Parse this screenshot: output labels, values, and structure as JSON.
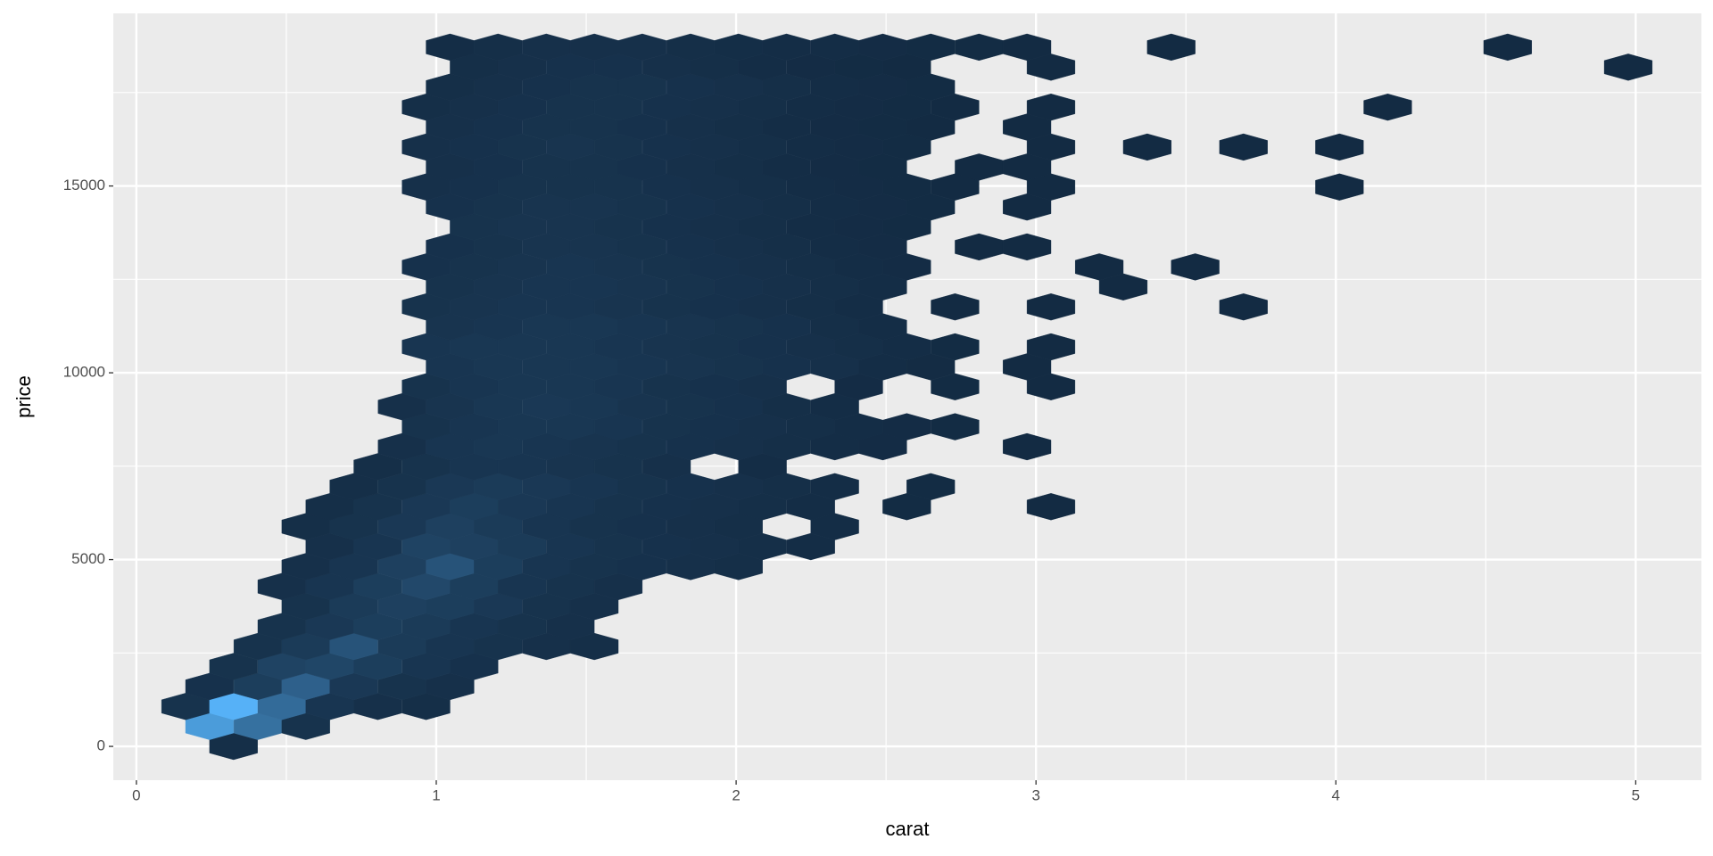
{
  "chart_data": {
    "type": "hexbin",
    "xlabel": "carat",
    "ylabel": "price",
    "xlim": [
      -0.077,
      5.219
    ],
    "ylim": [
      -905,
      19620
    ],
    "xticks": [
      0,
      1,
      2,
      3,
      4,
      5
    ],
    "yticks": [
      0,
      5000,
      10000,
      15000
    ],
    "minor_xticks": [
      0.5,
      1.5,
      2.5,
      3.5,
      4.5
    ],
    "minor_yticks": [
      2500,
      7500,
      12500,
      17500
    ],
    "grid": true,
    "colors": [
      "#132B43",
      "#56B1F7"
    ],
    "rows": [
      {
        "y": 0,
        "x": [
          0.324
        ],
        "values": [
          150
        ]
      },
      {
        "y": 535,
        "x": [
          0.244,
          0.405,
          0.565
        ],
        "values": [
          4200,
          2600,
          300
        ]
      },
      {
        "y": 1069,
        "x": [
          0.164,
          0.324,
          0.485,
          0.645,
          0.805,
          0.966
        ],
        "values": [
          300,
          5000,
          2400,
          400,
          200,
          150
        ]
      },
      {
        "y": 1604,
        "x": [
          0.244,
          0.405,
          0.565,
          0.725,
          0.886,
          1.046
        ],
        "values": [
          250,
          700,
          2000,
          500,
          300,
          200
        ]
      },
      {
        "y": 2139,
        "x": [
          0.324,
          0.485,
          0.645,
          0.805,
          0.966,
          1.126
        ],
        "values": [
          300,
          900,
          1000,
          700,
          400,
          250
        ]
      },
      {
        "y": 2674,
        "x": [
          0.405,
          0.565,
          0.725,
          0.886,
          1.046,
          1.206,
          1.367,
          1.527
        ],
        "values": [
          300,
          600,
          1500,
          600,
          400,
          300,
          200,
          150
        ]
      },
      {
        "y": 3208,
        "x": [
          0.485,
          0.645,
          0.805,
          0.966,
          1.126,
          1.286,
          1.447
        ],
        "values": [
          300,
          500,
          700,
          600,
          400,
          300,
          200
        ]
      },
      {
        "y": 3743,
        "x": [
          0.565,
          0.725,
          0.886,
          1.046,
          1.206,
          1.367,
          1.527
        ],
        "values": [
          300,
          600,
          800,
          700,
          500,
          300,
          200
        ]
      },
      {
        "y": 4278,
        "x": [
          0.485,
          0.645,
          0.805,
          0.966,
          1.126,
          1.286,
          1.447,
          1.607
        ],
        "values": [
          200,
          400,
          700,
          1100,
          700,
          400,
          300,
          200
        ]
      },
      {
        "y": 4812,
        "x": [
          0.565,
          0.725,
          0.886,
          1.046,
          1.206,
          1.367,
          1.527,
          1.687,
          1.848,
          2.008
        ],
        "values": [
          200,
          400,
          800,
          1500,
          700,
          400,
          300,
          250,
          200,
          150
        ]
      },
      {
        "y": 5347,
        "x": [
          0.645,
          0.805,
          0.966,
          1.126,
          1.286,
          1.447,
          1.607,
          1.768,
          1.928,
          2.088,
          2.249
        ],
        "values": [
          200,
          400,
          900,
          800,
          600,
          400,
          300,
          250,
          200,
          150,
          100
        ]
      },
      {
        "y": 5882,
        "x": [
          0.565,
          0.725,
          0.886,
          1.046,
          1.206,
          1.367,
          1.527,
          1.687,
          1.848,
          2.008,
          2.329
        ],
        "values": [
          150,
          300,
          500,
          800,
          600,
          400,
          300,
          250,
          200,
          150,
          100
        ]
      },
      {
        "y": 6416,
        "x": [
          0.645,
          0.805,
          0.966,
          1.126,
          1.286,
          1.447,
          1.607,
          1.768,
          1.928,
          2.088,
          2.249,
          2.569,
          3.05
        ],
        "values": [
          150,
          300,
          500,
          700,
          500,
          400,
          300,
          250,
          200,
          150,
          100,
          30,
          20
        ]
      },
      {
        "y": 6951,
        "x": [
          0.725,
          0.886,
          1.046,
          1.206,
          1.367,
          1.527,
          1.687,
          1.848,
          2.008,
          2.168,
          2.329,
          2.649
        ],
        "values": [
          150,
          300,
          500,
          600,
          500,
          400,
          300,
          250,
          200,
          150,
          100,
          30
        ]
      },
      {
        "y": 7486,
        "x": [
          0.805,
          0.966,
          1.126,
          1.286,
          1.447,
          1.607,
          1.768,
          2.088
        ],
        "values": [
          150,
          300,
          400,
          400,
          350,
          300,
          200,
          100
        ]
      },
      {
        "y": 8021,
        "x": [
          0.886,
          1.046,
          1.206,
          1.367,
          1.527,
          1.687,
          1.848,
          2.008,
          2.168,
          2.329,
          2.489,
          2.97
        ],
        "values": [
          200,
          400,
          450,
          400,
          350,
          300,
          250,
          200,
          150,
          100,
          60,
          20
        ]
      },
      {
        "y": 8555,
        "x": [
          0.966,
          1.126,
          1.286,
          1.447,
          1.607,
          1.768,
          1.928,
          2.088,
          2.249,
          2.409,
          2.569,
          2.73
        ],
        "values": [
          300,
          400,
          450,
          450,
          400,
          300,
          250,
          200,
          150,
          100,
          60,
          30
        ]
      },
      {
        "y": 9090,
        "x": [
          0.886,
          1.046,
          1.206,
          1.367,
          1.527,
          1.687,
          1.848,
          2.008,
          2.168,
          2.329
        ],
        "values": [
          200,
          350,
          450,
          500,
          450,
          350,
          300,
          250,
          150,
          100
        ]
      },
      {
        "y": 9625,
        "x": [
          0.966,
          1.126,
          1.286,
          1.447,
          1.607,
          1.768,
          1.928,
          2.088,
          2.409,
          2.73,
          3.05
        ],
        "values": [
          300,
          400,
          450,
          450,
          400,
          300,
          250,
          200,
          60,
          30,
          20
        ]
      },
      {
        "y": 10159,
        "x": [
          1.046,
          1.206,
          1.367,
          1.527,
          1.687,
          1.848,
          2.008,
          2.168,
          2.329,
          2.489,
          2.649,
          2.97
        ],
        "values": [
          400,
          450,
          450,
          450,
          400,
          350,
          300,
          250,
          200,
          100,
          50,
          20
        ]
      },
      {
        "y": 10694,
        "x": [
          0.966,
          1.126,
          1.286,
          1.447,
          1.607,
          1.768,
          1.928,
          2.088,
          2.249,
          2.409,
          2.569,
          2.73,
          3.05
        ],
        "values": [
          400,
          450,
          450,
          450,
          400,
          350,
          300,
          250,
          200,
          150,
          80,
          40,
          20
        ]
      },
      {
        "y": 11229,
        "x": [
          1.046,
          1.206,
          1.367,
          1.527,
          1.687,
          1.848,
          2.008,
          2.168,
          2.329,
          2.489
        ],
        "values": [
          350,
          400,
          450,
          450,
          400,
          350,
          300,
          250,
          150,
          100
        ]
      },
      {
        "y": 11763,
        "x": [
          0.966,
          1.126,
          1.286,
          1.447,
          1.607,
          1.768,
          1.928,
          2.088,
          2.249,
          2.409,
          2.73,
          3.05,
          3.692
        ],
        "values": [
          300,
          350,
          400,
          400,
          350,
          300,
          250,
          200,
          150,
          80,
          20,
          20,
          10
        ]
      },
      {
        "y": 12298,
        "x": [
          1.046,
          1.206,
          1.367,
          1.527,
          1.687,
          1.848,
          2.008,
          2.168,
          2.329,
          2.489,
          3.291
        ],
        "values": [
          300,
          350,
          400,
          400,
          350,
          300,
          250,
          200,
          150,
          80,
          10
        ]
      },
      {
        "y": 12833,
        "x": [
          0.966,
          1.126,
          1.286,
          1.447,
          1.607,
          1.768,
          1.928,
          2.088,
          2.249,
          2.409,
          2.569,
          3.211,
          3.531
        ],
        "values": [
          250,
          300,
          350,
          400,
          350,
          300,
          250,
          200,
          150,
          100,
          60,
          10,
          10
        ]
      },
      {
        "y": 13368,
        "x": [
          1.046,
          1.206,
          1.367,
          1.527,
          1.687,
          1.848,
          2.008,
          2.168,
          2.329,
          2.489,
          2.81,
          2.97
        ],
        "values": [
          250,
          300,
          350,
          350,
          300,
          250,
          200,
          150,
          100,
          60,
          20,
          20
        ]
      },
      {
        "y": 13902,
        "x": [
          1.126,
          1.286,
          1.447,
          1.607,
          1.768,
          1.928,
          2.088,
          2.249,
          2.409,
          2.569
        ],
        "values": [
          300,
          350,
          350,
          300,
          250,
          200,
          150,
          100,
          60,
          30
        ]
      },
      {
        "y": 14437,
        "x": [
          1.046,
          1.206,
          1.367,
          1.527,
          1.687,
          1.848,
          2.008,
          2.168,
          2.329,
          2.489,
          2.649,
          2.97
        ],
        "values": [
          250,
          300,
          350,
          350,
          300,
          250,
          200,
          150,
          100,
          60,
          30,
          20
        ]
      },
      {
        "y": 14972,
        "x": [
          0.966,
          1.126,
          1.286,
          1.447,
          1.607,
          1.768,
          1.928,
          2.088,
          2.249,
          2.409,
          2.569,
          2.73,
          3.05,
          4.012
        ],
        "values": [
          200,
          250,
          300,
          300,
          300,
          250,
          200,
          150,
          100,
          60,
          40,
          20,
          20,
          10
        ]
      },
      {
        "y": 15506,
        "x": [
          1.046,
          1.206,
          1.367,
          1.527,
          1.687,
          1.848,
          2.008,
          2.168,
          2.329,
          2.489,
          2.81,
          2.97
        ],
        "values": [
          200,
          250,
          300,
          300,
          250,
          200,
          150,
          100,
          60,
          40,
          20,
          20
        ]
      },
      {
        "y": 16041,
        "x": [
          0.966,
          1.126,
          1.286,
          1.447,
          1.607,
          1.768,
          1.928,
          2.088,
          2.249,
          2.409,
          2.569,
          3.05,
          3.371,
          3.692,
          4.012
        ],
        "values": [
          200,
          250,
          300,
          350,
          300,
          250,
          200,
          150,
          100,
          60,
          30,
          20,
          10,
          10,
          10
        ]
      },
      {
        "y": 16576,
        "x": [
          1.046,
          1.206,
          1.367,
          1.527,
          1.687,
          1.848,
          2.008,
          2.168,
          2.329,
          2.489,
          2.649,
          2.97
        ],
        "values": [
          200,
          250,
          300,
          300,
          250,
          200,
          150,
          100,
          60,
          40,
          20,
          20
        ]
      },
      {
        "y": 17110,
        "x": [
          0.966,
          1.126,
          1.286,
          1.447,
          1.607,
          1.768,
          1.928,
          2.088,
          2.249,
          2.409,
          2.569,
          2.73,
          3.05,
          4.173
        ],
        "values": [
          150,
          200,
          250,
          300,
          300,
          250,
          200,
          150,
          100,
          60,
          40,
          20,
          20,
          10
        ]
      },
      {
        "y": 17645,
        "x": [
          1.046,
          1.206,
          1.367,
          1.527,
          1.687,
          1.848,
          2.008,
          2.168,
          2.329,
          2.489,
          2.649
        ],
        "values": [
          150,
          200,
          250,
          300,
          300,
          250,
          200,
          150,
          100,
          60,
          30
        ]
      },
      {
        "y": 18180,
        "x": [
          1.126,
          1.286,
          1.447,
          1.607,
          1.768,
          1.928,
          2.088,
          2.249,
          2.409,
          2.569,
          3.05,
          4.975
        ],
        "values": [
          150,
          200,
          250,
          250,
          200,
          150,
          100,
          60,
          40,
          20,
          20,
          10
        ]
      },
      {
        "y": 18715,
        "x": [
          1.046,
          1.206,
          1.367,
          1.527,
          1.687,
          1.848,
          2.008,
          2.168,
          2.329,
          2.489,
          2.649,
          2.81,
          2.97,
          3.451,
          4.573
        ],
        "values": [
          100,
          150,
          200,
          200,
          200,
          150,
          120,
          100,
          80,
          60,
          40,
          30,
          20,
          10,
          10
        ]
      }
    ]
  }
}
